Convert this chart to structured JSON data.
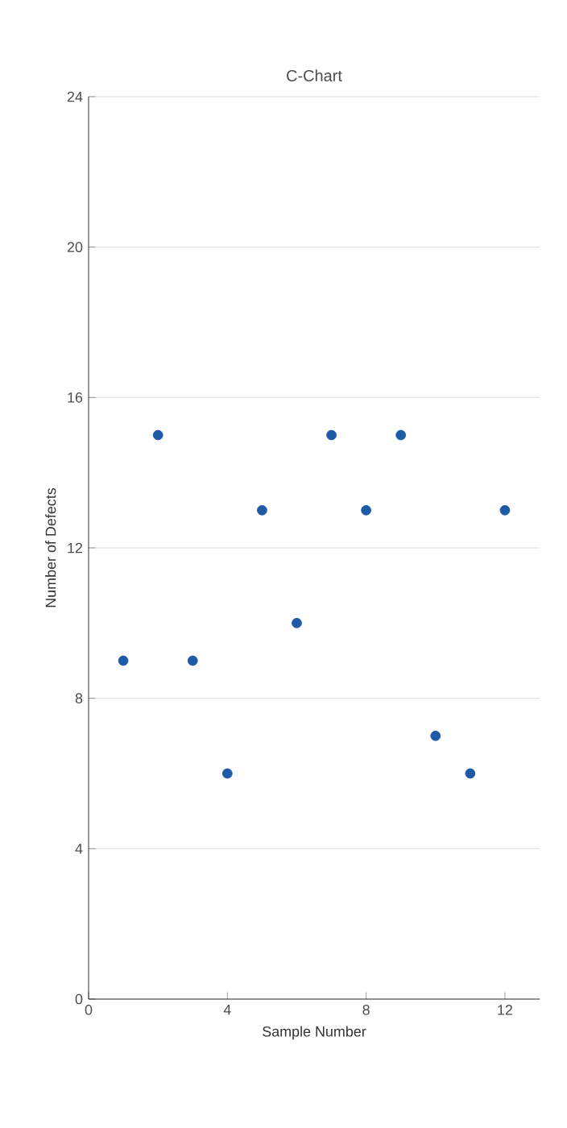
{
  "chart_data": {
    "type": "scatter",
    "title": "C-Chart",
    "xlabel": "Sample Number",
    "ylabel": "Number of Defects",
    "x": [
      1,
      2,
      3,
      4,
      5,
      6,
      7,
      8,
      9,
      10,
      11,
      12
    ],
    "values": [
      9,
      15,
      9,
      6,
      13,
      10,
      15,
      13,
      15,
      7,
      6,
      13
    ],
    "color": "#1f5aa6",
    "grid": "y",
    "xlim": [
      0,
      13
    ],
    "xticks": [
      0,
      4,
      8,
      12
    ],
    "ylim": [
      0,
      24
    ],
    "yticks": [
      0,
      4,
      8,
      12,
      16,
      20,
      24
    ]
  }
}
